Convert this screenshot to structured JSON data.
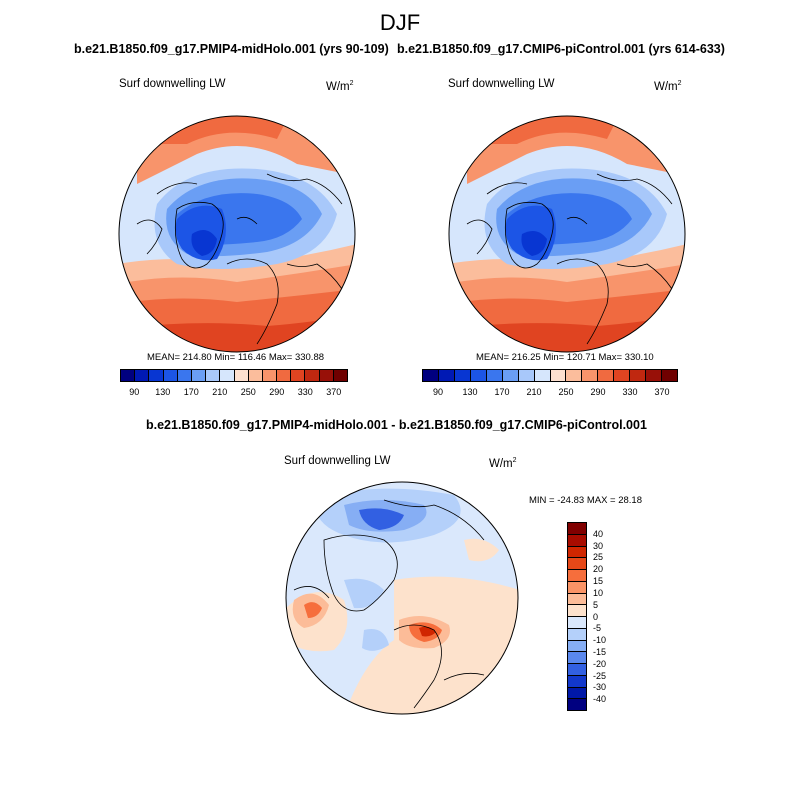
{
  "season": "DJF",
  "left_panel": {
    "run_title": "b.e21.B1850.f09_g17.PMIP4-midHolo.001 (yrs 90-109)",
    "label": "Surf downwelling LW",
    "unit_base": "W/m",
    "unit_exp": "2",
    "stats": "MEAN= 214.80  Min= 116.46  Max= 330.88"
  },
  "right_panel": {
    "run_title": "b.e21.B1850.f09_g17.CMIP6-piControl.001 (yrs 614-633)",
    "label": "Surf downwelling LW",
    "unit_base": "W/m",
    "unit_exp": "2",
    "stats": "MEAN= 216.25  Min= 120.71  Max= 330.10"
  },
  "diff_panel": {
    "run_title": "b.e21.B1850.f09_g17.PMIP4-midHolo.001 - b.e21.B1850.f09_g17.CMIP6-piControl.001",
    "label": "Surf downwelling LW",
    "unit_base": "W/m",
    "unit_exp": "2",
    "stats": "MIN = -24.83 MAX =  28.18"
  },
  "abs_colorbar": {
    "colors": [
      "#00007f",
      "#0019b4",
      "#0836d2",
      "#1c55e6",
      "#3a76ee",
      "#6a9ef4",
      "#a8c8fa",
      "#d6e6fc",
      "#fde0cf",
      "#fbbd9c",
      "#f8946b",
      "#f06a40",
      "#e04421",
      "#c02810",
      "#981008",
      "#700000"
    ],
    "tick_labels": [
      "90",
      "130",
      "170",
      "210",
      "250",
      "290",
      "330",
      "370"
    ]
  },
  "diff_colorbar": {
    "colors_top_to_bottom": [
      "#800000",
      "#a80c00",
      "#d02600",
      "#e64818",
      "#f66e3c",
      "#fa9466",
      "#fcbc98",
      "#fde2cc",
      "#dae8fc",
      "#b4d0fa",
      "#86aef4",
      "#5a88ee",
      "#3260e2",
      "#1238cc",
      "#0018a8",
      "#000080"
    ],
    "tick_labels": [
      "40",
      "30",
      "25",
      "20",
      "15",
      "10",
      "5",
      "0",
      "-5",
      "-10",
      "-15",
      "-20",
      "-25",
      "-30",
      "-40"
    ]
  }
}
